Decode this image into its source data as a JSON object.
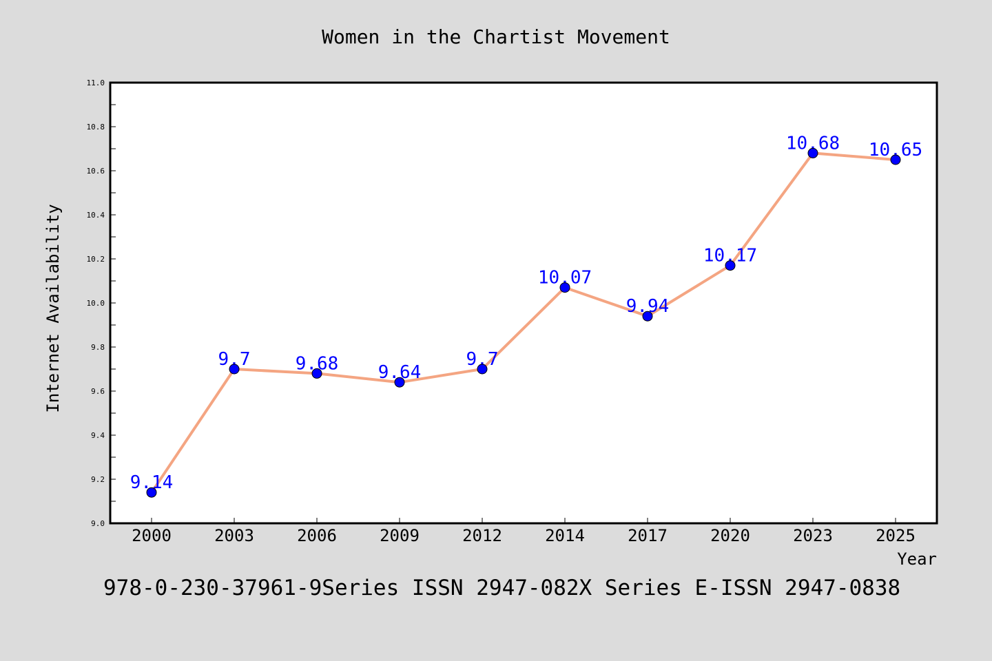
{
  "chart_data": {
    "type": "line",
    "title": "Women in the Chartist Movement",
    "xlabel": "Year",
    "ylabel": "Internet Availability",
    "categories": [
      "2000",
      "2003",
      "2006",
      "2009",
      "2012",
      "2014",
      "2017",
      "2020",
      "2023",
      "2025"
    ],
    "series": [
      {
        "values": [
          9.14,
          9.7,
          9.68,
          9.64,
          9.7,
          10.07,
          9.94,
          10.17,
          10.68,
          10.65
        ],
        "data_labels": [
          "9.14",
          "9.7",
          "9.68",
          "9.64",
          "9.7",
          "10.07",
          "9.94",
          "10.17",
          "10.68",
          "10.65"
        ]
      }
    ],
    "ylim": [
      9.0,
      11.0
    ],
    "yticks": [
      9.0,
      9.2,
      9.4,
      9.6,
      9.8,
      10.0,
      10.2,
      10.4,
      10.6,
      10.8,
      11.0
    ],
    "ytick_labels": [
      "9.0",
      "9.2",
      "9.4",
      "9.6",
      "9.8",
      "10.0",
      "10.2",
      "10.4",
      "10.6",
      "10.8",
      "11.0"
    ],
    "grid": false,
    "colors": {
      "background": "#dcdcdc",
      "plot_background": "#ffffff",
      "line": "#f4a582",
      "marker": "#0000ff",
      "data_label": "#0000ff",
      "text": "#000000"
    }
  },
  "footer": {
    "text": "978-0-230-37961-9Series ISSN 2947-082X Series E-ISSN 2947-0838"
  }
}
